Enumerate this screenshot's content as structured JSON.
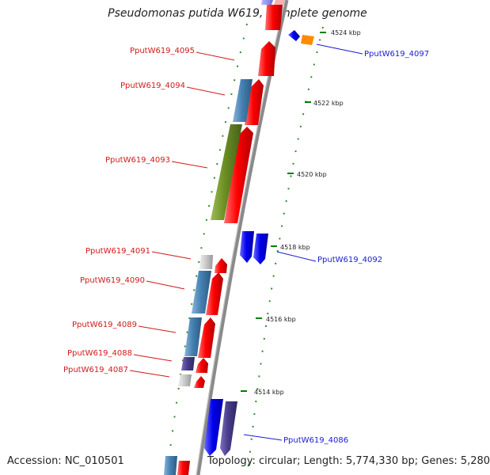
{
  "title": "Pseudomonas putida W619, complete genome",
  "accession": "Accession: NC_010501",
  "summary": "Topology: circular; Length: 5,774,330 bp; Genes: 5,280",
  "ticks": [
    "4524 kbp",
    "4522 kbp",
    "4520 kbp",
    "4518 kbp",
    "4516 kbp",
    "4514 kbp"
  ],
  "gene_labels": [
    {
      "name": "PputW619_4097",
      "color": "#1a1ad2"
    },
    {
      "name": "PputW619_4095",
      "color": "#d21a1a"
    },
    {
      "name": "PputW619_4094",
      "color": "#d21a1a"
    },
    {
      "name": "PputW619_4093",
      "color": "#d21a1a"
    },
    {
      "name": "PputW619_4092",
      "color": "#1a1ad2"
    },
    {
      "name": "PputW619_4091",
      "color": "#d21a1a"
    },
    {
      "name": "PputW619_4090",
      "color": "#d21a1a"
    },
    {
      "name": "PputW619_4089",
      "color": "#d21a1a"
    },
    {
      "name": "PputW619_4088",
      "color": "#d21a1a"
    },
    {
      "name": "PputW619_4087",
      "color": "#d21a1a"
    },
    {
      "name": "PputW619_4086",
      "color": "#1a1ad2"
    }
  ],
  "colors": {
    "forward": "#ff0000",
    "reverse": "#0000ee",
    "steelblue": "#4682b4",
    "olive": "#6b8e23",
    "purple": "#483d8b",
    "orange": "#ff8c00",
    "grey": "#c8c8c8",
    "backbone": "#808080",
    "tickmark": "#008000"
  }
}
